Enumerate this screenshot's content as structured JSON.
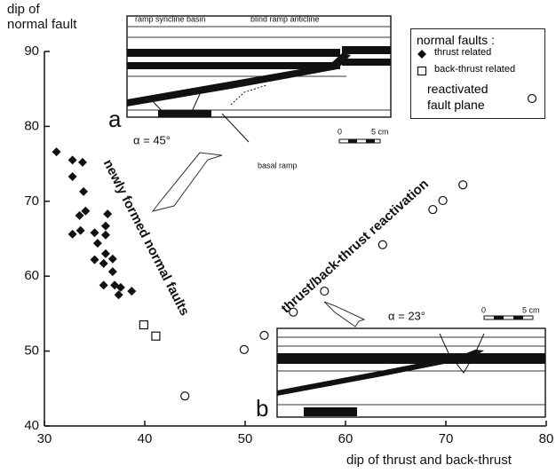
{
  "chart_data": {
    "type": "scatter",
    "xlabel": "dip of thrust and back-thrust",
    "ylabel": "dip of normal fault",
    "xlim": [
      30,
      80
    ],
    "xticks": [
      30,
      40,
      50,
      60,
      70,
      80
    ],
    "ylim": [
      40,
      90
    ],
    "yticks": [
      40,
      50,
      60,
      70,
      80,
      90
    ],
    "legend_title": "normal faults :",
    "legend": "upper right",
    "series": [
      {
        "name": "thrust related",
        "marker": "diamond",
        "color": "#111111",
        "x": [
          31.2,
          32.8,
          33.8,
          32.8,
          33.9,
          34.1,
          33.5,
          36.3,
          33.6,
          32.8,
          35.0,
          36.1,
          36.1,
          35.3,
          36.1,
          35.0,
          36.8,
          35.9,
          36.8,
          35.9,
          37.0,
          37.4,
          37.6,
          38.7
        ],
        "values": [
          76.6,
          75.5,
          75.2,
          73.3,
          71.3,
          68.7,
          68.1,
          68.3,
          66.1,
          65.6,
          65.8,
          66.7,
          65.5,
          64.4,
          63.0,
          62.2,
          62.3,
          61.7,
          60.6,
          58.8,
          58.8,
          57.5,
          58.5,
          58.0
        ]
      },
      {
        "name": "back-thrust related",
        "marker": "square",
        "color": "#111111",
        "x": [
          39.9,
          41.1
        ],
        "values": [
          53.5,
          52.0
        ]
      },
      {
        "name": "reactivated fault plane",
        "marker": "circle",
        "color": "#111111",
        "x": [
          44.0,
          49.9,
          51.9,
          54.8,
          57.9,
          63.7,
          68.7,
          69.7,
          71.7
        ],
        "values": [
          44.0,
          50.2,
          52.1,
          55.2,
          58.0,
          64.2,
          68.9,
          70.1,
          72.2
        ]
      }
    ],
    "annotations": [
      "ramp syncline basin",
      "blind ramp anticline",
      "basal ramp",
      "a",
      "α = 45°",
      "0",
      "5 cm",
      "newly formed normal faults",
      "thrust/back-thrust reactivation",
      "α = 23°",
      "0",
      "5 cm",
      "b"
    ]
  }
}
